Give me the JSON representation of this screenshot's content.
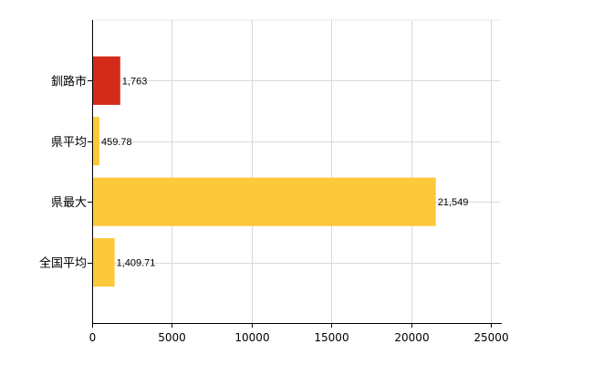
{
  "chart_data": {
    "type": "bar",
    "orientation": "horizontal",
    "categories": [
      "釧路市",
      "県平均",
      "県最大",
      "全国平均"
    ],
    "values": [
      1763,
      459.78,
      21549,
      1409.71
    ],
    "value_labels": [
      "1,763",
      "459.78",
      "21,549",
      "1,409.71"
    ],
    "bar_colors": [
      "#d42a1a",
      "#fcc93a",
      "#fcc93a",
      "#fcc93a"
    ],
    "xlim": [
      0,
      25000
    ],
    "xticks": [
      0,
      5000,
      10000,
      15000,
      20000,
      25000
    ],
    "xtick_labels": [
      "0",
      "5000",
      "10000",
      "15000",
      "20000",
      "25000"
    ],
    "grid": true,
    "legend": "none",
    "title": "",
    "xlabel": "",
    "ylabel": ""
  }
}
